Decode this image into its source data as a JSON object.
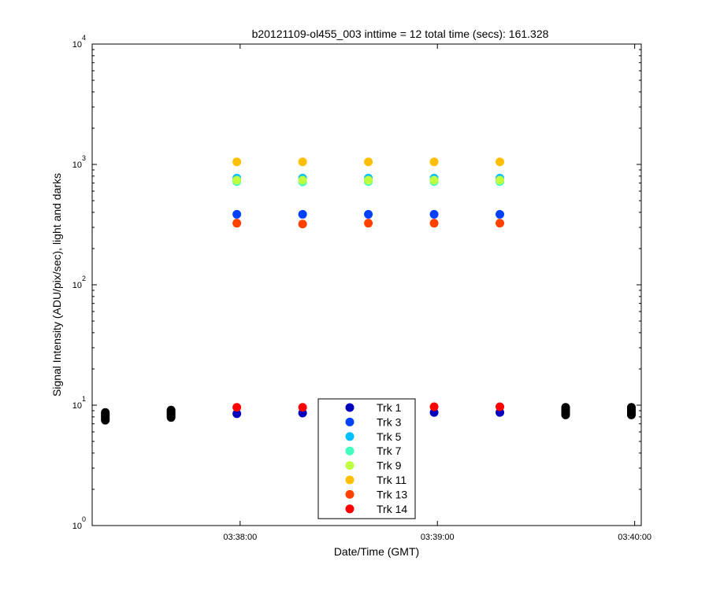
{
  "chart_data": {
    "type": "scatter",
    "title": "b20121109-ol455_003 inttime = 12 total time (secs): 161.328",
    "xlabel": "Date/Time (GMT)",
    "ylabel": "Signal Intensity (ADU/pix/sec), light and darks",
    "yscale": "log",
    "xlim": [
      "03:37:15",
      "03:40:02"
    ],
    "ylim": [
      1,
      10000
    ],
    "x_ticks": [
      "03:38:00",
      "03:39:00",
      "03:40:00"
    ],
    "y_ticks": [
      {
        "base": "10",
        "exp": "0"
      },
      {
        "base": "10",
        "exp": "1"
      },
      {
        "base": "10",
        "exp": "2"
      },
      {
        "base": "10",
        "exp": "3"
      },
      {
        "base": "10",
        "exp": "4"
      }
    ],
    "grid": false,
    "legend_position": "bottom-center",
    "series": [
      {
        "name": "Trk 1",
        "color": "#0000bf",
        "x": [
          "03:37:59",
          "03:38:19",
          "03:38:39",
          "03:38:59",
          "03:39:19"
        ],
        "y": [
          8.5,
          8.6,
          8.6,
          8.7,
          8.7
        ]
      },
      {
        "name": "Trk 3",
        "color": "#0040ff",
        "x": [
          "03:37:59",
          "03:38:19",
          "03:38:39",
          "03:38:59",
          "03:39:19"
        ],
        "y": [
          385,
          385,
          385,
          385,
          385
        ]
      },
      {
        "name": "Trk 5",
        "color": "#00bfff",
        "x": [
          "03:37:59",
          "03:38:19",
          "03:38:39",
          "03:38:59",
          "03:39:19"
        ],
        "y": [
          770,
          770,
          770,
          770,
          770
        ]
      },
      {
        "name": "Trk 7",
        "color": "#40ffbf",
        "x": [
          "03:37:59",
          "03:38:19",
          "03:38:39",
          "03:38:59",
          "03:39:19"
        ],
        "y": [
          720,
          715,
          720,
          720,
          720
        ]
      },
      {
        "name": "Trk 9",
        "color": "#bfff40",
        "x": [
          "03:37:59",
          "03:38:19",
          "03:38:39",
          "03:38:59",
          "03:39:19"
        ],
        "y": [
          740,
          740,
          740,
          740,
          740
        ]
      },
      {
        "name": "Trk 11",
        "color": "#ffbf00",
        "x": [
          "03:37:59",
          "03:38:19",
          "03:38:39",
          "03:38:59",
          "03:39:19"
        ],
        "y": [
          1050,
          1050,
          1050,
          1050,
          1050
        ]
      },
      {
        "name": "Trk 13",
        "color": "#ff4000",
        "x": [
          "03:37:59",
          "03:38:19",
          "03:38:39",
          "03:38:59",
          "03:39:19"
        ],
        "y": [
          325,
          320,
          325,
          325,
          325
        ]
      },
      {
        "name": "Trk 14",
        "color": "#ff0000",
        "x": [
          "03:37:59",
          "03:38:19",
          "03:38:39",
          "03:38:59",
          "03:39:19"
        ],
        "y": [
          9.6,
          9.6,
          9.6,
          9.7,
          9.7
        ]
      },
      {
        "color": "#000000",
        "x": [
          "03:37:19",
          "03:37:19",
          "03:37:19",
          "03:37:19",
          "03:37:19",
          "03:37:19",
          "03:37:19",
          "03:37:39",
          "03:37:39",
          "03:37:39",
          "03:37:39",
          "03:37:39",
          "03:37:39",
          "03:37:39",
          "03:39:39",
          "03:39:39",
          "03:39:39",
          "03:39:39",
          "03:39:39",
          "03:39:39",
          "03:39:39",
          "03:39:59",
          "03:39:59",
          "03:39:59",
          "03:39:59",
          "03:39:59",
          "03:39:59",
          "03:39:59"
        ],
        "y": [
          7.5,
          7.7,
          7.9,
          8.1,
          8.3,
          8.5,
          8.7,
          7.9,
          8.1,
          8.3,
          8.5,
          8.7,
          8.9,
          9.1,
          8.3,
          8.5,
          8.7,
          8.9,
          9.1,
          9.3,
          9.6,
          8.3,
          8.5,
          8.7,
          8.9,
          9.1,
          9.3,
          9.6
        ]
      }
    ]
  }
}
